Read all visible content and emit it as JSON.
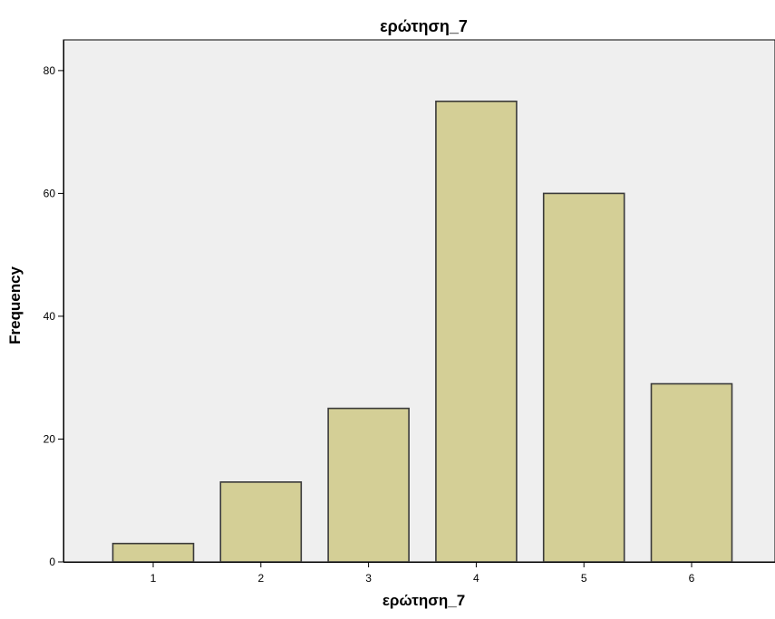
{
  "chart_data": {
    "type": "bar",
    "title": "ερώτηση_7",
    "xlabel": "ερώτηση_7",
    "ylabel": "Frequency",
    "categories": [
      "1",
      "2",
      "3",
      "4",
      "5",
      "6"
    ],
    "values": [
      3,
      13,
      25,
      75,
      60,
      29
    ],
    "ylim": [
      0,
      85
    ],
    "yticks": [
      0,
      20,
      40,
      60,
      80
    ],
    "yticks_labels": [
      "0",
      "20",
      "40",
      "60",
      "80"
    ],
    "grid": false,
    "legend": "none",
    "colors": {
      "plot_background": "#efefef",
      "bar_fill": "#d4cf96",
      "bar_stroke": "#3a3a3a",
      "axis": "#000000"
    }
  }
}
